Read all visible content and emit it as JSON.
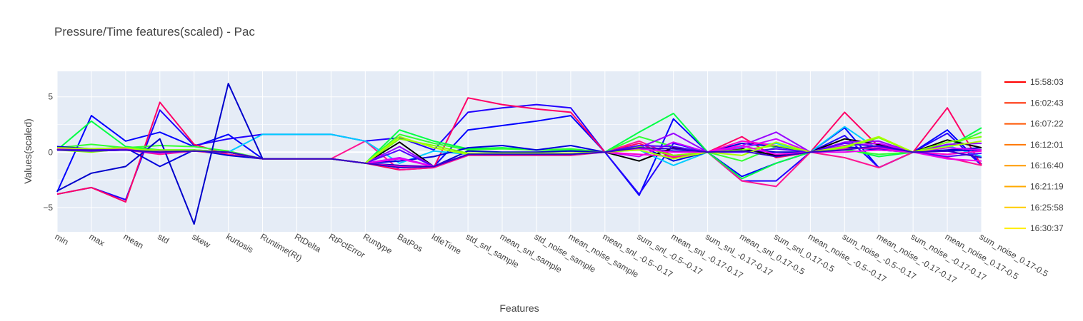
{
  "chart_data": {
    "type": "line",
    "title": "Pressure/Time features(scaled) - Pac",
    "xlabel": "Features",
    "ylabel": "Values(scaled)",
    "ylim": [
      -7.2,
      7.3
    ],
    "yticks": [
      -5,
      0,
      5
    ],
    "grid": true,
    "legend_position": "right",
    "categories": [
      "min",
      "max",
      "mean",
      "std",
      "skew",
      "kurtosis",
      "Runtime(Rt)",
      "RtDelta",
      "RtPctError",
      "Runtype",
      "BatPos",
      "IdleTime",
      "std_snl_sample",
      "mean_snl_sample",
      "std_noise_sample",
      "mean_noise_sample",
      "mean_snl_-0.5--0.17",
      "sum_snl_-0.5--0.17",
      "mean_snl_-0.17-0.17",
      "sum_snl_-0.17-0.17",
      "mean_snl_0.17-0.5",
      "sum_snl_0.17-0.5",
      "mean_noise_-0.5--0.17",
      "sum_noise_-0.5--0.17",
      "mean_noise_-0.17-0.17",
      "sum_noise_-0.17-0.17",
      "mean_noise_0.17-0.5",
      "sum_noise_0.17-0.5"
    ],
    "legend": [
      {
        "name": "15:58:03",
        "color": "#ff0000"
      },
      {
        "name": "16:02:43",
        "color": "#ff2a00"
      },
      {
        "name": "16:07:22",
        "color": "#ff5500"
      },
      {
        "name": "16:12:01",
        "color": "#ff7700"
      },
      {
        "name": "16:16:40",
        "color": "#ff9900"
      },
      {
        "name": "16:21:19",
        "color": "#ffaa00"
      },
      {
        "name": "16:25:58",
        "color": "#ffcc00"
      },
      {
        "name": "16:30:37",
        "color": "#ffee00"
      }
    ],
    "series": [
      {
        "color": "#0000ff",
        "values": [
          -3.6,
          3.3,
          1.0,
          1.8,
          0.5,
          1.6,
          -0.6,
          -0.6,
          -0.6,
          -1.0,
          -1.3,
          -1.3,
          2.0,
          2.4,
          2.8,
          3.3,
          0.0,
          -3.9,
          3.0,
          0.0,
          -2.2,
          -1.0,
          0.0,
          2.2,
          -1.4,
          0.0,
          2.0,
          -1.1
        ]
      },
      {
        "color": "#2200ff",
        "values": [
          -3.8,
          -3.2,
          -4.3,
          3.8,
          0.6,
          1.2,
          1.6,
          1.6,
          1.6,
          1.0,
          1.3,
          0.2,
          3.6,
          4.0,
          4.3,
          4.0,
          0.0,
          -3.8,
          0.8,
          0.0,
          -2.6,
          -2.6,
          0.0,
          1.5,
          -1.4,
          0.0,
          1.7,
          -1.2
        ]
      },
      {
        "color": "#ff0066",
        "values": [
          -3.8,
          -3.2,
          -4.5,
          4.5,
          0.7,
          -0.2,
          -0.6,
          -0.6,
          -0.6,
          -1.0,
          -1.6,
          -1.4,
          4.9,
          4.3,
          3.9,
          3.6,
          0.0,
          0.8,
          -0.5,
          0.0,
          1.4,
          -0.5,
          0.0,
          3.6,
          0.5,
          0.0,
          4.0,
          -1.2
        ]
      },
      {
        "color": "#ff1493",
        "values": [
          0.3,
          0.2,
          0.2,
          -0.2,
          0.1,
          -0.2,
          -0.6,
          -0.6,
          -0.6,
          1.0,
          -1.6,
          -1.4,
          -0.3,
          -0.3,
          -0.3,
          -0.3,
          0.0,
          1.0,
          -0.3,
          0.0,
          -2.6,
          -3.1,
          0.0,
          -0.5,
          -1.4,
          0.0,
          -0.5,
          -1.2
        ]
      },
      {
        "color": "#00ff44",
        "values": [
          0.2,
          2.8,
          0.5,
          0.2,
          0.2,
          0.0,
          -0.6,
          -0.6,
          -0.6,
          -1.0,
          2.0,
          1.0,
          0.3,
          0.4,
          0.2,
          0.2,
          0.0,
          1.8,
          3.5,
          0.0,
          -2.4,
          -1.0,
          0.0,
          0.3,
          -0.4,
          0.0,
          0.4,
          2.2
        ]
      },
      {
        "color": "#33ff33",
        "values": [
          0.4,
          0.7,
          0.4,
          0.6,
          0.5,
          0.1,
          -0.6,
          -0.6,
          -0.6,
          -1.0,
          1.6,
          0.8,
          0.2,
          0.3,
          0.2,
          0.3,
          0.0,
          1.4,
          0.5,
          0.0,
          -0.8,
          0.5,
          0.0,
          0.2,
          -0.2,
          0.0,
          0.5,
          1.8
        ]
      },
      {
        "color": "#00ccff",
        "values": [
          0.3,
          0.1,
          0.2,
          0.0,
          0.2,
          0.0,
          1.6,
          1.6,
          1.6,
          1.0,
          -1.0,
          0.1,
          -0.2,
          -0.2,
          -0.2,
          -0.2,
          0.0,
          0.2,
          -1.2,
          0.0,
          0.5,
          0.8,
          0.0,
          2.3,
          0.2,
          0.0,
          0.6,
          -0.4
        ]
      },
      {
        "color": "#0000dd",
        "values": [
          0.5,
          0.3,
          0.4,
          -1.3,
          0.2,
          -0.3,
          -0.6,
          -0.6,
          -0.6,
          -1.0,
          -0.8,
          -0.4,
          0.4,
          0.6,
          0.2,
          0.6,
          0.0,
          0.6,
          -0.8,
          0.0,
          0.8,
          0.5,
          0.0,
          0.4,
          0.3,
          0.0,
          0.1,
          0.2
        ]
      },
      {
        "color": "#0000cc",
        "values": [
          -3.5,
          -1.9,
          -1.3,
          1.2,
          -6.5,
          6.2,
          -0.6,
          -0.6,
          -0.6,
          -1.0,
          -1.2,
          -1.3,
          0.1,
          0.0,
          0.0,
          0.1,
          0.0,
          0.3,
          0.1,
          0.0,
          0.2,
          0.0,
          0.0,
          0.5,
          0.2,
          0.0,
          0.2,
          0.4
        ]
      },
      {
        "color": "#000000",
        "values": [
          0.4,
          0.3,
          0.3,
          0.1,
          0.1,
          0.0,
          -0.6,
          -0.6,
          -0.6,
          -1.0,
          0.9,
          -1.3,
          -0.2,
          -0.2,
          -0.2,
          -0.2,
          0.0,
          -0.8,
          0.4,
          0.0,
          0.3,
          -0.3,
          0.0,
          1.2,
          0.7,
          0.0,
          1.1,
          0.4
        ]
      },
      {
        "color": "#9900ff",
        "values": [
          0.3,
          0.2,
          0.3,
          0.1,
          0.1,
          0.0,
          -0.6,
          -0.6,
          -0.6,
          -1.0,
          0.5,
          -1.3,
          -0.2,
          -0.2,
          -0.2,
          -0.2,
          0.0,
          0.4,
          1.7,
          0.0,
          0.6,
          1.8,
          0.0,
          0.9,
          1.0,
          0.0,
          0.7,
          0.8
        ]
      },
      {
        "color": "#cc00ff",
        "values": [
          0.2,
          0.1,
          0.2,
          0.0,
          0.1,
          0.0,
          -0.6,
          -0.6,
          -0.6,
          -1.0,
          -0.5,
          -1.3,
          -0.2,
          -0.2,
          -0.2,
          -0.2,
          0.0,
          -0.4,
          0.9,
          0.0,
          0.4,
          1.2,
          0.0,
          0.6,
          0.8,
          0.0,
          0.4,
          0.2
        ]
      },
      {
        "color": "#ff00cc",
        "values": [
          0.3,
          0.2,
          0.3,
          0.0,
          0.1,
          0.0,
          -0.6,
          -0.6,
          -0.6,
          -1.0,
          -1.3,
          -1.3,
          -0.2,
          -0.2,
          -0.2,
          -0.2,
          0.0,
          -0.2,
          -0.4,
          0.0,
          1.0,
          0.6,
          0.0,
          0.3,
          0.4,
          0.0,
          -0.2,
          0.1
        ]
      },
      {
        "color": "#7fff00",
        "values": [
          0.2,
          0.0,
          0.3,
          0.2,
          0.2,
          0.0,
          -0.6,
          -0.6,
          -0.6,
          -1.0,
          1.2,
          0.6,
          -0.1,
          -0.1,
          -0.1,
          -0.1,
          0.0,
          0.5,
          -0.3,
          0.0,
          0.2,
          0.6,
          0.0,
          0.4,
          1.3,
          0.0,
          0.9,
          1.4
        ]
      },
      {
        "color": "#5500ff",
        "values": [
          0.2,
          0.1,
          0.2,
          -0.1,
          0.1,
          0.0,
          -0.6,
          -0.6,
          -0.6,
          -1.0,
          0.2,
          -1.3,
          -0.2,
          -0.2,
          -0.2,
          -0.2,
          0.0,
          0.6,
          0.5,
          0.0,
          0.0,
          0.3,
          0.0,
          0.8,
          0.5,
          0.0,
          -0.4,
          -0.1
        ]
      },
      {
        "color": "#ee00ee",
        "values": [
          0.3,
          0.2,
          0.3,
          -0.1,
          0.1,
          0.0,
          -0.6,
          -0.6,
          -0.6,
          -1.0,
          -0.6,
          -1.3,
          -0.2,
          -0.2,
          -0.2,
          -0.2,
          0.0,
          0.3,
          0.0,
          0.0,
          0.6,
          -0.2,
          0.0,
          0.0,
          0.2,
          0.0,
          -0.6,
          -0.8
        ]
      },
      {
        "color": "#aaff00",
        "values": [
          0.4,
          0.3,
          0.4,
          0.0,
          0.1,
          0.0,
          -0.6,
          -0.6,
          -0.6,
          -1.0,
          1.4,
          0.4,
          -0.2,
          -0.2,
          -0.2,
          -0.2,
          0.0,
          0.2,
          -0.6,
          0.0,
          -0.3,
          0.9,
          0.0,
          0.5,
          1.4,
          0.0,
          0.5,
          1.0
        ]
      },
      {
        "color": "#3300cc",
        "values": [
          0.2,
          0.2,
          0.2,
          0.0,
          0.1,
          0.0,
          -0.6,
          -0.6,
          -0.6,
          -1.0,
          -1.4,
          -1.3,
          -0.2,
          -0.2,
          -0.2,
          -0.2,
          0.0,
          0.4,
          0.3,
          0.0,
          0.1,
          -0.4,
          0.0,
          0.2,
          0.6,
          0.0,
          0.1,
          -0.5
        ]
      }
    ]
  }
}
